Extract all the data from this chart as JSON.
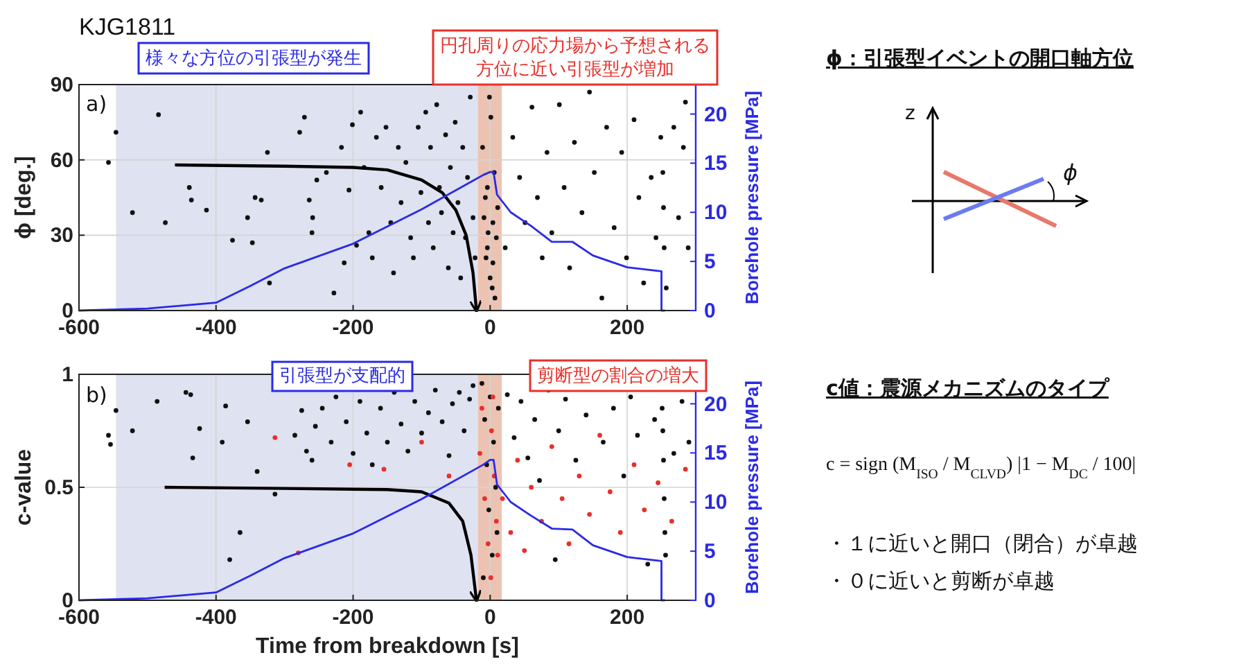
{
  "chart_data": [
    {
      "type": "scatter",
      "title": "KJG1811",
      "ylabel": "ϕ  [deg.]",
      "y2label": "Borehole pressure [MPa]",
      "xlim": [
        -600,
        300
      ],
      "xticks": [
        -600,
        -400,
        -200,
        0,
        200
      ],
      "ylim": [
        0,
        90
      ],
      "yticks": [
        0,
        30,
        60,
        90
      ],
      "y2lim": [
        0,
        23
      ],
      "y2ticks": [
        0,
        5,
        10,
        15,
        20
      ],
      "grid": true,
      "bands": [
        {
          "axis": "x",
          "from": -546,
          "to": -18,
          "color": "#dfe2f0"
        },
        {
          "axis": "x",
          "from": -18,
          "to": 17,
          "color": "#ecc3b3"
        }
      ],
      "annotations": [
        "a)",
        "様々な方位の引張型が発生",
        "円孔周りの応力場から予想される",
        "方位に近い引張型が増加"
      ],
      "series": [
        {
          "type": "scatter",
          "marker": "circle",
          "color": "#111111",
          "x": [
            -546,
            -557,
            -484,
            -522,
            -474,
            -439,
            -436,
            -414,
            -376,
            -347,
            -343,
            -334,
            -325,
            -354,
            -322,
            -278,
            -271,
            -264,
            -259,
            -260,
            -253,
            -239,
            -228,
            -217,
            -213,
            -206,
            -201,
            -195,
            -189,
            -184,
            -177,
            -172,
            -166,
            -159,
            -152,
            -145,
            -141,
            -134,
            -130,
            -123,
            -116,
            -112,
            -105,
            -101,
            -94,
            -90,
            -87,
            -83,
            -78,
            -74,
            -71,
            -65,
            -61,
            -58,
            -54,
            -51,
            -47,
            -43,
            -40,
            -36,
            -33,
            -29,
            -25,
            -22,
            -11,
            -7,
            -4,
            0,
            1,
            4,
            6,
            7,
            9,
            -1,
            -6,
            4,
            -9,
            11,
            -4,
            3,
            -3,
            22,
            33,
            43,
            51,
            61,
            69,
            76,
            83,
            90,
            101,
            108,
            116,
            123,
            134,
            145,
            152,
            163,
            170,
            181,
            192,
            199,
            210,
            217,
            224,
            235,
            242,
            252,
            253,
            254,
            257,
            249,
            268,
            275,
            282,
            289,
            285
          ],
          "values": [
            71,
            59,
            78,
            39,
            35,
            49,
            44,
            40,
            28,
            27,
            45,
            44,
            63,
            37,
            11,
            71,
            77,
            44,
            37,
            31,
            52,
            55,
            7,
            65,
            19,
            48,
            74,
            26,
            79,
            57,
            31,
            21,
            69,
            49,
            73,
            35,
            15,
            65,
            43,
            59,
            29,
            21,
            73,
            47,
            79,
            35,
            65,
            25,
            82,
            49,
            39,
            70,
            17,
            57,
            31,
            75,
            43,
            13,
            65,
            29,
            53,
            85,
            37,
            21,
            65,
            45,
            25,
            13,
            77,
            35,
            55,
            5,
            29,
            85,
            21,
            19,
            37,
            41,
            49,
            9,
            31,
            25,
            69,
            53,
            35,
            81,
            45,
            21,
            63,
            31,
            82,
            49,
            17,
            67,
            39,
            87,
            55,
            5,
            73,
            33,
            63,
            21,
            76,
            45,
            11,
            53,
            29,
            55,
            41,
            25,
            9,
            69,
            73,
            37,
            65,
            25,
            83
          ]
        },
        {
          "type": "line",
          "color": "#000000",
          "x": [
            -460,
            -300,
            -200,
            -150,
            -100,
            -70,
            -50,
            -35,
            -25,
            -20
          ],
          "values": [
            58,
            57.5,
            57,
            56,
            52,
            47,
            40,
            30,
            15,
            0
          ]
        },
        {
          "type": "line",
          "axis": "y2",
          "color": "#2a2ae6",
          "x": [
            -600,
            -500,
            -400,
            -350,
            -300,
            -200,
            -100,
            -10,
            0,
            5,
            10,
            30,
            60,
            90,
            120,
            150,
            200,
            250,
            250,
            255
          ],
          "values": [
            0,
            0.2,
            0.8,
            2.5,
            4.3,
            6.8,
            10.3,
            13.8,
            14.1,
            14.1,
            11.8,
            10,
            8.6,
            7,
            7,
            5.6,
            4.4,
            4,
            0,
            0
          ]
        }
      ]
    },
    {
      "type": "scatter",
      "xlabel": "Time from breakdown [s]",
      "ylabel": "c-value",
      "y2label": "Borehole pressure [MPa]",
      "xlim": [
        -600,
        300
      ],
      "xticks": [
        -600,
        -400,
        -200,
        0,
        200
      ],
      "ylim": [
        0,
        1
      ],
      "yticks": [
        0,
        0.5,
        1
      ],
      "y2lim": [
        0,
        23
      ],
      "y2ticks": [
        0,
        5,
        10,
        15,
        20
      ],
      "grid": true,
      "bands": [
        {
          "axis": "x",
          "from": -546,
          "to": -18,
          "color": "#dfe2f0"
        },
        {
          "axis": "x",
          "from": -18,
          "to": 17,
          "color": "#ecc3b3"
        }
      ],
      "annotations": [
        "b)",
        "引張型が支配的",
        "剪断型の割合の増大"
      ],
      "series": [
        {
          "type": "scatter",
          "marker": "circle",
          "color": "#111111",
          "x": [
            -557,
            -554,
            -546,
            -522,
            -486,
            -444,
            -437,
            -434,
            -424,
            -391,
            -386,
            -380,
            -365,
            -354,
            -340,
            -314,
            -285,
            -275,
            -268,
            -260,
            -255,
            -245,
            -232,
            -225,
            -210,
            -200,
            -190,
            -180,
            -172,
            -160,
            -150,
            -140,
            -130,
            -120,
            -110,
            -100,
            -90,
            -80,
            -70,
            -60,
            -55,
            -45,
            -38,
            -30,
            -25,
            -12,
            -8,
            -5,
            -2,
            0,
            3,
            5,
            8,
            10,
            -10,
            12,
            25,
            35,
            45,
            55,
            65,
            72,
            85,
            95,
            100,
            110,
            125,
            140,
            165,
            180,
            195,
            205,
            215,
            230,
            240,
            251,
            252,
            253,
            254,
            255,
            256,
            268,
            280,
            290
          ],
          "values": [
            0.73,
            0.69,
            0.84,
            0.75,
            0.88,
            0.92,
            0.91,
            0.63,
            0.76,
            0.7,
            0.86,
            0.18,
            0.3,
            0.79,
            0.57,
            0.47,
            0.73,
            0.84,
            0.66,
            0.62,
            0.77,
            0.85,
            0.7,
            0.9,
            0.79,
            0.65,
            0.88,
            0.74,
            0.6,
            0.85,
            0.7,
            0.92,
            0.78,
            0.66,
            0.88,
            0.74,
            0.83,
            0.93,
            0.79,
            0.64,
            0.87,
            0.92,
            0.75,
            0.89,
            0.95,
            0.96,
            0.8,
            0.6,
            0.4,
            0.9,
            0.2,
            0.7,
            0.5,
            0.3,
            0.1,
            0.85,
            0.91,
            0.72,
            0.88,
            0.63,
            0.8,
            0.53,
            0.93,
            0.18,
            0.75,
            0.89,
            0.62,
            0.82,
            0.7,
            0.85,
            0.55,
            0.9,
            0.73,
            0.16,
            0.8,
            0.85,
            0.75,
            0.62,
            0.45,
            0.3,
            0.2,
            0.65,
            0.88,
            0.7
          ]
        },
        {
          "type": "scatter",
          "marker": "circle",
          "color": "#e8302a",
          "x": [
            -314,
            -280,
            -205,
            -155,
            -100,
            -60,
            -15,
            -8,
            -3,
            2,
            6,
            9,
            -12,
            1,
            4,
            11,
            18,
            30,
            40,
            50,
            60,
            75,
            90,
            105,
            115,
            130,
            145,
            160,
            175,
            190,
            210,
            225,
            245,
            265,
            285
          ],
          "values": [
            0.72,
            0.21,
            0.6,
            0.58,
            0.7,
            0.55,
            0.65,
            0.45,
            0.25,
            0.75,
            0.55,
            0.35,
            0.85,
            0.1,
            0.9,
            0.2,
            0.45,
            0.3,
            0.62,
            0.22,
            0.5,
            0.35,
            0.68,
            0.45,
            0.25,
            0.55,
            0.38,
            0.73,
            0.48,
            0.3,
            0.6,
            0.4,
            0.52,
            0.35,
            0.58
          ]
        },
        {
          "type": "line",
          "color": "#000000",
          "x": [
            -475,
            -300,
            -150,
            -100,
            -60,
            -40,
            -28,
            -20
          ],
          "values": [
            0.5,
            0.495,
            0.49,
            0.48,
            0.43,
            0.35,
            0.2,
            0
          ]
        },
        {
          "type": "line",
          "axis": "y2",
          "color": "#2a2ae6",
          "x": [
            -600,
            -500,
            -400,
            -350,
            -300,
            -200,
            -100,
            -10,
            0,
            5,
            10,
            30,
            60,
            90,
            120,
            150,
            200,
            250,
            250,
            255
          ],
          "values": [
            0,
            0.2,
            0.8,
            2.5,
            4.3,
            6.8,
            10.3,
            13.8,
            14.3,
            14.3,
            11.8,
            10,
            8.6,
            7.3,
            7.2,
            5.6,
            4.4,
            4,
            0,
            0
          ]
        }
      ]
    },
    {
      "type": "other",
      "annotations": [
        "ϕ：引張型イベントの開口軸方位",
        "z",
        "ϕ",
        "c値：震源メカニズムのタイプ",
        "c = sign (M$_{ISO}$ / M$_{CLVD}$) |1 − M$_{DC}$ / 100|",
        "・１に近いと開口（閉合）が卓越",
        "・０に近いと剪断が卓越"
      ]
    }
  ]
}
